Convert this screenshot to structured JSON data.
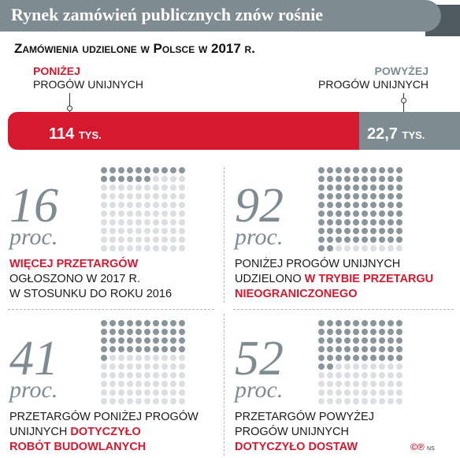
{
  "header": {
    "title": "Rynek zamówień publicznych znów rośnie"
  },
  "subtitle": "Zamówienia udzielone w Polsce w 2017 r.",
  "chart_data": {
    "type": "bar",
    "categories": [
      "PONIŻEJ PROGÓW UNIJNYCH",
      "POWYŻEJ PROGÓW UNIJNYCH"
    ],
    "values": [
      114,
      22.7
    ],
    "value_labels": [
      "114",
      "22,7"
    ],
    "unit": "TYS.",
    "colors": [
      "#d7192f",
      "#7e8b91"
    ]
  },
  "labels": {
    "below_strong": "PONIŻEJ",
    "below_rest": "PROGÓW UNIJNYCH",
    "above_strong": "POWYŻEJ",
    "above_rest": "PROGÓW UNIJNYCH"
  },
  "panels": [
    {
      "value": 16,
      "big": "16",
      "proc": "proc.",
      "l1_red": "WIĘCEJ PRZETARGÓW",
      "l2": "OGŁOSZONO W 2017 R.",
      "l3": "W STOSUNKU DO ROKU 2016"
    },
    {
      "value": 92,
      "big": "92",
      "proc": "proc.",
      "l1": "PONIŻEJ PROGÓW UNIJNYCH",
      "l2_plain": "UDZIELONO ",
      "l2_red": "W TRYBIE PRZETARGU",
      "l3_red": "NIEOGRANICZONEGO"
    },
    {
      "value": 41,
      "big": "41",
      "proc": "proc.",
      "l1": "PRZETARGÓW PONIŻEJ PROGÓW",
      "l2_plain": "UNIJNYCH ",
      "l2_red": "DOTYCZYŁO",
      "l3_red": "ROBÓT BUDOWLANYCH"
    },
    {
      "value": 52,
      "big": "52",
      "proc": "proc.",
      "l1": "PRZETARGÓW POWYŻEJ",
      "l2": "PROGÓW UNIJNYCH",
      "l3_red": "DOTYCZYŁO DOSTAW"
    }
  ],
  "credit": {
    "symbol": "©℗",
    "initials": "NS"
  }
}
